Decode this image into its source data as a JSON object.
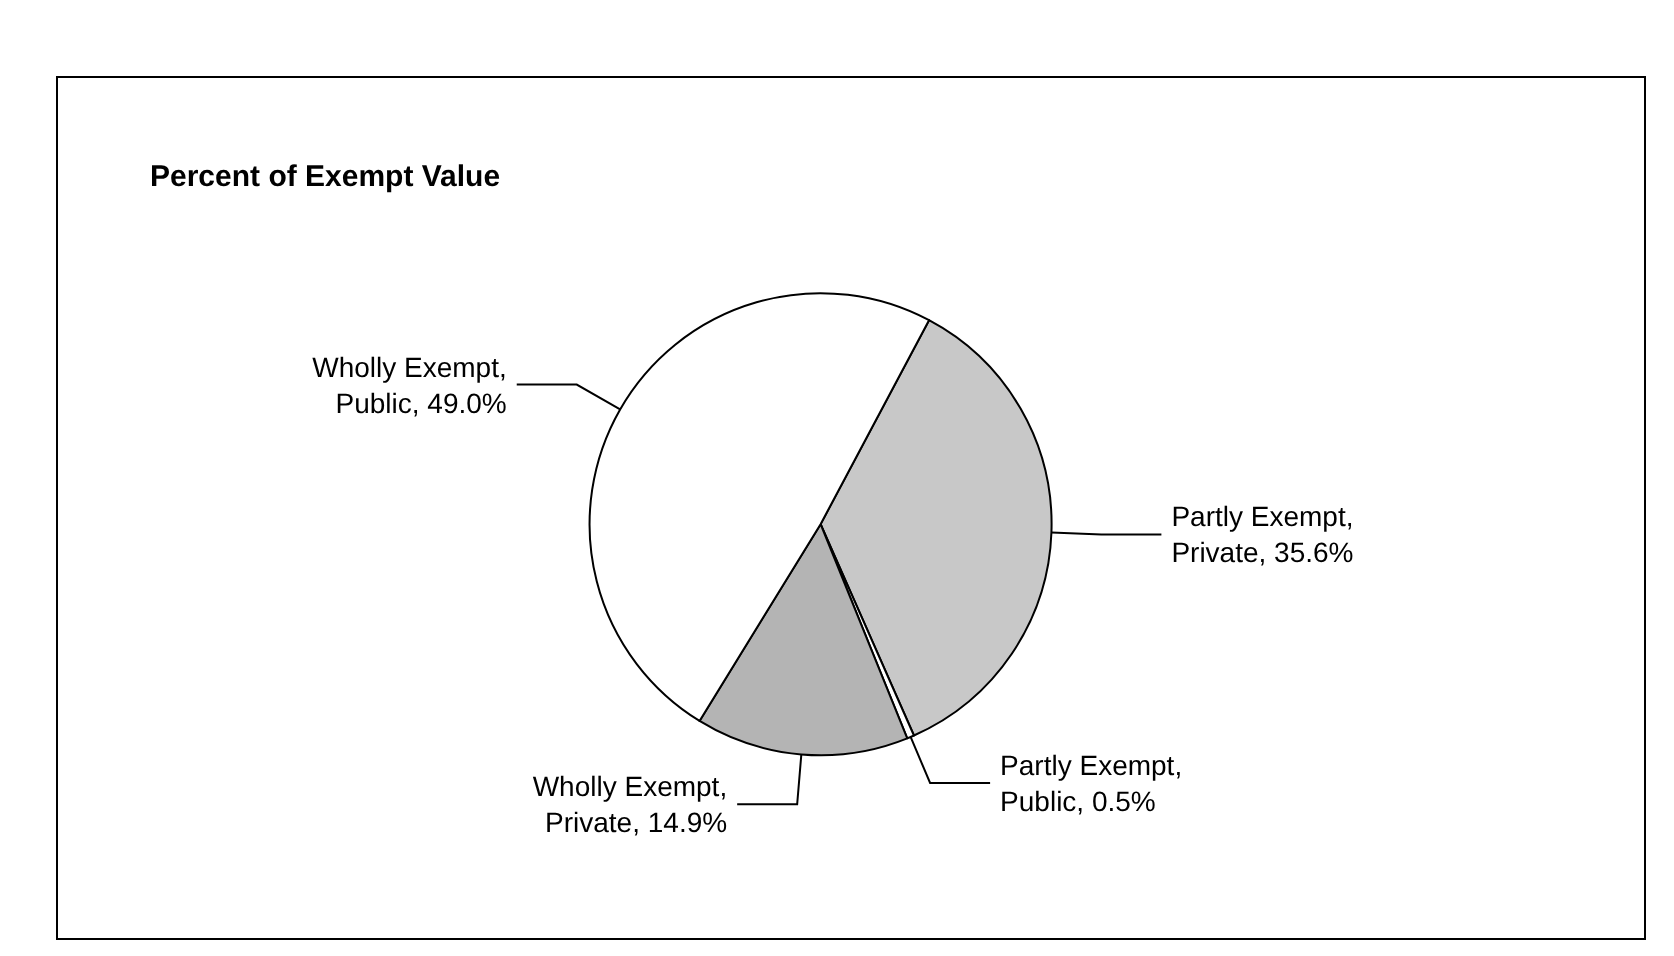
{
  "chart_data": {
    "type": "pie",
    "title": "Percent of Exempt Value",
    "categories": [
      "Partly Exempt, Private",
      "Partly Exempt, Public",
      "Wholly Exempt, Private",
      "Wholly Exempt, Public"
    ],
    "values": [
      35.6,
      0.5,
      14.9,
      49.0
    ],
    "value_labels": [
      "35.6%",
      "0.5%",
      "14.9%",
      "49.0%"
    ],
    "colors": [
      "#c8c8c8",
      "#ffffff",
      "#b4b4b4",
      "#ffffff"
    ],
    "legend": false
  }
}
